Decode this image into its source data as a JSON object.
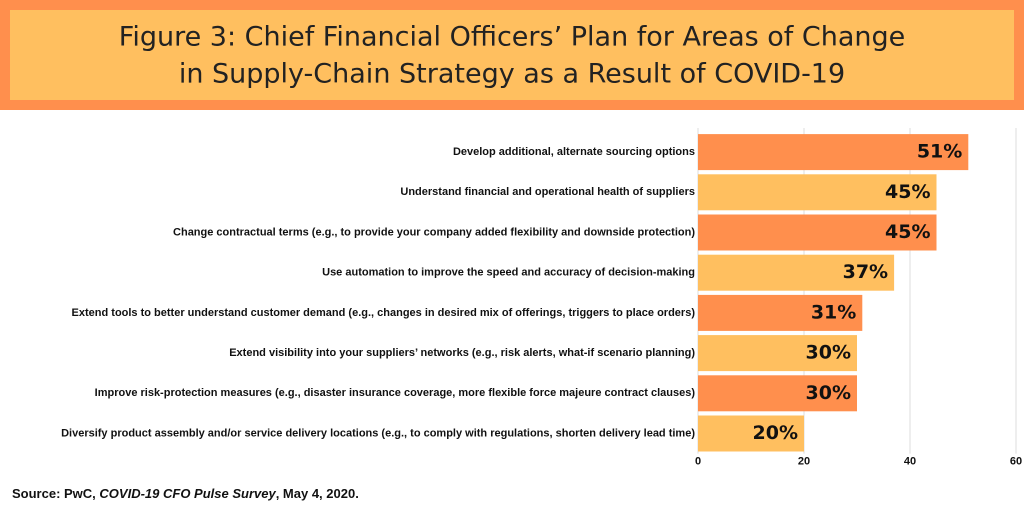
{
  "chart_data": {
    "type": "hbar",
    "title_lines": [
      "Figure 3: Chief Financial Officers’ Plan for Areas of Change",
      "in Supply-Chain Strategy as a Result of COVID-19"
    ],
    "categories": [
      "Develop additional, alternate sourcing options",
      "Understand financial and operational health of suppliers",
      "Change contractual terms (e.g., to provide your company added flexibility and downside protection)",
      "Use automation to improve the speed and accuracy of decision-making",
      "Extend tools to better understand customer demand (e.g., changes in desired mix of offerings, triggers to place orders)",
      "Extend visibility into your suppliers’ networks (e.g., risk alerts, what-if scenario planning)",
      "Improve risk-protection measures (e.g., disaster insurance coverage, more flexible force majeure contract clauses)",
      "Diversify product assembly and/or service delivery locations (e.g., to comply with regulations, shorten delivery lead time)"
    ],
    "values": [
      51,
      45,
      45,
      37,
      31,
      30,
      30,
      20
    ],
    "value_labels": [
      "51%",
      "45%",
      "45%",
      "37%",
      "31%",
      "30%",
      "30%",
      "20%"
    ],
    "colors": [
      "#ff8f4d",
      "#ffbf5f",
      "#ff8f4d",
      "#ffbf5f",
      "#ff8f4d",
      "#ffbf5f",
      "#ff8f4d",
      "#ffbf5f"
    ],
    "xlim": [
      0,
      60
    ],
    "xticks": [
      0,
      20,
      40,
      60
    ],
    "grid": true,
    "source": [
      "Source: PwC, ",
      "COVID-19 CFO Pulse Survey",
      ", May 4, 2020."
    ]
  }
}
